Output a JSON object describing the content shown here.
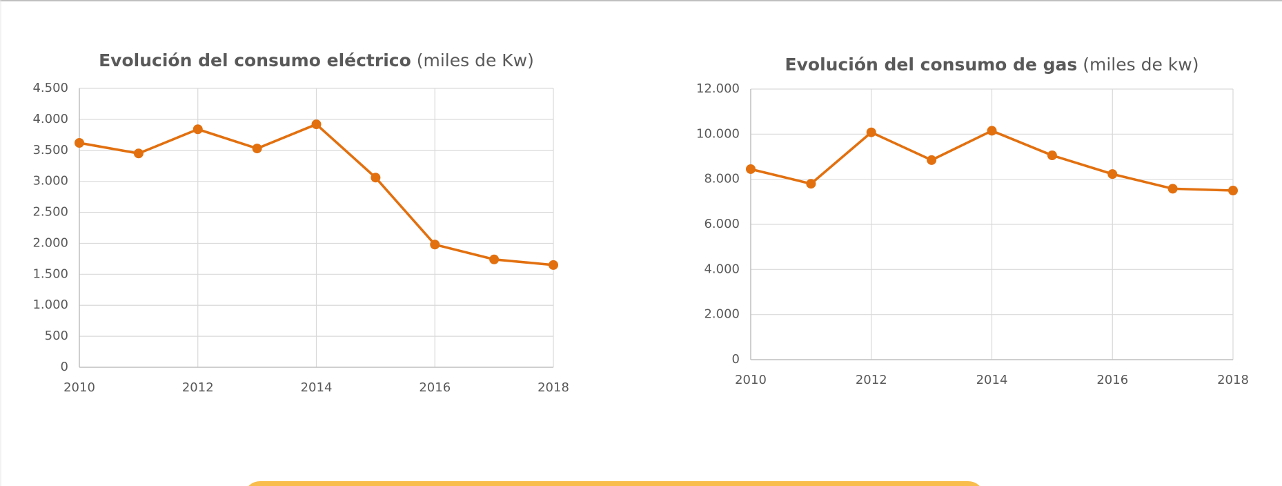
{
  "chart_data": [
    {
      "type": "line",
      "title": "Evolución del consumo eléctrico",
      "title_unit": "(miles de Kw)",
      "x": [
        2010,
        2011,
        2012,
        2013,
        2014,
        2015,
        2016,
        2017,
        2018
      ],
      "series": [
        {
          "name": "Consumo eléctrico",
          "color": "#e2700f",
          "values": [
            3620,
            3450,
            3840,
            3530,
            3920,
            3060,
            1980,
            1740,
            1650
          ]
        }
      ],
      "xlim": [
        2010,
        2018
      ],
      "xticks": [
        2010,
        2012,
        2014,
        2016,
        2018
      ],
      "ylim": [
        0,
        4500
      ],
      "yticks": [
        0,
        500,
        {
          "value": 1000,
          "label": "1.000"
        },
        {
          "value": 1500,
          "label": "1.500"
        },
        {
          "value": 2000,
          "label": "2.000"
        },
        {
          "value": 2500,
          "label": "2.500"
        },
        {
          "value": 3000,
          "label": "3.000"
        },
        {
          "value": 3500,
          "label": "3.500"
        },
        {
          "value": 4000,
          "label": "4.000"
        },
        {
          "value": 4500,
          "label": "4.500"
        }
      ],
      "grid": true
    },
    {
      "type": "line",
      "title": "Evolución del consumo de gas",
      "title_unit": "(miles de kw)",
      "x": [
        2010,
        2011,
        2012,
        2013,
        2014,
        2015,
        2016,
        2017,
        2018
      ],
      "series": [
        {
          "name": "Consumo de gas",
          "color": "#e2700f",
          "values": [
            8450,
            7800,
            10080,
            8850,
            10150,
            9060,
            8230,
            7580,
            7500
          ]
        }
      ],
      "xlim": [
        2010,
        2018
      ],
      "xticks": [
        2010,
        2012,
        2014,
        2016,
        2018
      ],
      "ylim": [
        0,
        12000
      ],
      "yticks": [
        0,
        {
          "value": 2000,
          "label": "2.000"
        },
        {
          "value": 4000,
          "label": "4.000"
        },
        {
          "value": 6000,
          "label": "6.000"
        },
        {
          "value": 8000,
          "label": "8.000"
        },
        {
          "value": 10000,
          "label": "10.000"
        },
        {
          "value": 12000,
          "label": "12.000"
        }
      ],
      "grid": true
    }
  ]
}
